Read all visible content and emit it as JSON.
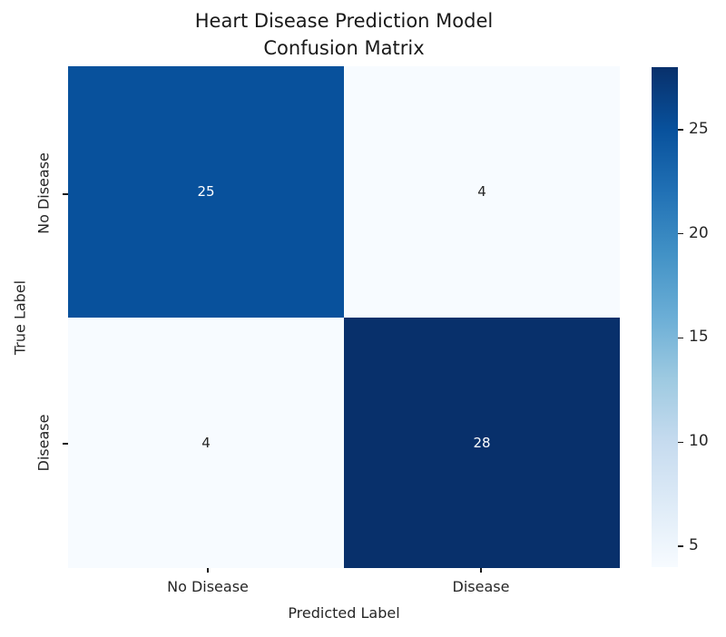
{
  "chart_data": {
    "type": "heatmap",
    "title": "Heart Disease Prediction Model\nConfusion Matrix",
    "xlabel": "Predicted Label",
    "ylabel": "True Label",
    "x_categories": [
      "No Disease",
      "Disease"
    ],
    "y_categories": [
      "No Disease",
      "Disease"
    ],
    "matrix": [
      [
        25,
        4
      ],
      [
        4,
        28
      ]
    ],
    "vmin": 4,
    "vmax": 28,
    "colormap": "Blues",
    "colorbar_ticks": [
      5,
      10,
      15,
      20,
      25
    ],
    "colorbar_position": "right",
    "grid": false,
    "cell_colors": [
      [
        "#08519c",
        "#f7fbff"
      ],
      [
        "#f7fbff",
        "#08306b"
      ]
    ],
    "cell_text_colors": [
      [
        "#ffffff",
        "#262626"
      ],
      [
        "#262626",
        "#ffffff"
      ]
    ],
    "colormap_stops": [
      "#f7fbff",
      "#deebf7",
      "#c6dbef",
      "#9ecae1",
      "#6baed6",
      "#4292c6",
      "#2171b5",
      "#08519c",
      "#08306b"
    ]
  },
  "colors": {
    "background": "#ffffff",
    "title_text": "#1a1a1a",
    "tick_text": "#262626",
    "high_cell": "#08306b",
    "mid_cell": "#08519c",
    "low_cell": "#f7fbff"
  }
}
